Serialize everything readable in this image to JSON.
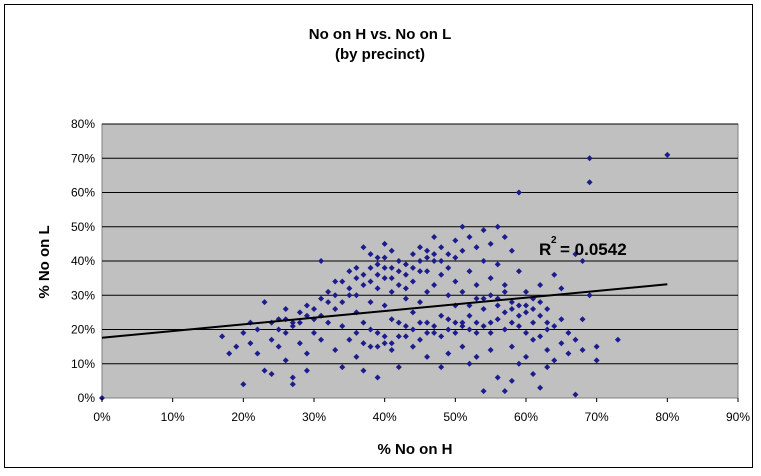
{
  "chart_data": {
    "type": "scatter",
    "title": "No on H vs. No on L",
    "subtitle": "(by precinct)",
    "xlabel": "% No on H",
    "ylabel": "% No on L",
    "xlim": [
      0,
      0.9
    ],
    "ylim": [
      0,
      0.8
    ],
    "x_ticks": [
      "0%",
      "10%",
      "20%",
      "30%",
      "40%",
      "50%",
      "60%",
      "70%",
      "80%",
      "90%"
    ],
    "y_ticks": [
      "0%",
      "10%",
      "20%",
      "30%",
      "40%",
      "50%",
      "60%",
      "70%",
      "80%"
    ],
    "grid": "horizontal",
    "colors": {
      "point": "#1c1c8c",
      "plot_bg": "#c0c0c0",
      "trendline": "#000000"
    },
    "annotation": {
      "text_r": "R",
      "sup": "2",
      "text_value": "= 0.0542"
    },
    "trendline": {
      "type": "linear",
      "x": [
        0,
        0.8
      ],
      "y": [
        0.176,
        0.332
      ]
    },
    "points": [
      [
        0,
        0
      ],
      [
        0.17,
        0.18
      ],
      [
        0.18,
        0.13
      ],
      [
        0.19,
        0.15
      ],
      [
        0.2,
        0.19
      ],
      [
        0.2,
        0.04
      ],
      [
        0.21,
        0.22
      ],
      [
        0.21,
        0.16
      ],
      [
        0.22,
        0.2
      ],
      [
        0.22,
        0.13
      ],
      [
        0.23,
        0.28
      ],
      [
        0.23,
        0.08
      ],
      [
        0.24,
        0.17
      ],
      [
        0.24,
        0.07
      ],
      [
        0.25,
        0.23
      ],
      [
        0.25,
        0.15
      ],
      [
        0.26,
        0.26
      ],
      [
        0.26,
        0.19
      ],
      [
        0.26,
        0.11
      ],
      [
        0.27,
        0.22
      ],
      [
        0.27,
        0.06
      ],
      [
        0.27,
        0.04
      ],
      [
        0.28,
        0.16
      ],
      [
        0.28,
        0.25
      ],
      [
        0.29,
        0.27
      ],
      [
        0.29,
        0.13
      ],
      [
        0.29,
        0.08
      ],
      [
        0.3,
        0.23
      ],
      [
        0.3,
        0.19
      ],
      [
        0.31,
        0.4
      ],
      [
        0.31,
        0.29
      ],
      [
        0.31,
        0.17
      ],
      [
        0.32,
        0.31
      ],
      [
        0.32,
        0.22
      ],
      [
        0.33,
        0.26
      ],
      [
        0.33,
        0.14
      ],
      [
        0.34,
        0.34
      ],
      [
        0.34,
        0.21
      ],
      [
        0.34,
        0.09
      ],
      [
        0.35,
        0.37
      ],
      [
        0.35,
        0.3
      ],
      [
        0.35,
        0.17
      ],
      [
        0.36,
        0.38
      ],
      [
        0.36,
        0.25
      ],
      [
        0.36,
        0.12
      ],
      [
        0.37,
        0.44
      ],
      [
        0.37,
        0.33
      ],
      [
        0.37,
        0.22
      ],
      [
        0.37,
        0.08
      ],
      [
        0.38,
        0.42
      ],
      [
        0.38,
        0.28
      ],
      [
        0.38,
        0.15
      ],
      [
        0.39,
        0.39
      ],
      [
        0.39,
        0.32
      ],
      [
        0.39,
        0.19
      ],
      [
        0.39,
        0.06
      ],
      [
        0.4,
        0.45
      ],
      [
        0.4,
        0.41
      ],
      [
        0.4,
        0.35
      ],
      [
        0.4,
        0.27
      ],
      [
        0.4,
        0.16
      ],
      [
        0.41,
        0.43
      ],
      [
        0.41,
        0.38
      ],
      [
        0.41,
        0.31
      ],
      [
        0.41,
        0.23
      ],
      [
        0.41,
        0.14
      ],
      [
        0.42,
        0.4
      ],
      [
        0.42,
        0.33
      ],
      [
        0.42,
        0.18
      ],
      [
        0.42,
        0.09
      ],
      [
        0.43,
        0.36
      ],
      [
        0.43,
        0.29
      ],
      [
        0.43,
        0.21
      ],
      [
        0.44,
        0.42
      ],
      [
        0.44,
        0.34
      ],
      [
        0.44,
        0.25
      ],
      [
        0.44,
        0.15
      ],
      [
        0.45,
        0.44
      ],
      [
        0.45,
        0.37
      ],
      [
        0.45,
        0.28
      ],
      [
        0.45,
        0.17
      ],
      [
        0.46,
        0.41
      ],
      [
        0.46,
        0.31
      ],
      [
        0.46,
        0.22
      ],
      [
        0.46,
        0.12
      ],
      [
        0.47,
        0.47
      ],
      [
        0.47,
        0.4
      ],
      [
        0.47,
        0.33
      ],
      [
        0.47,
        0.19
      ],
      [
        0.48,
        0.44
      ],
      [
        0.48,
        0.36
      ],
      [
        0.48,
        0.24
      ],
      [
        0.48,
        0.09
      ],
      [
        0.49,
        0.38
      ],
      [
        0.49,
        0.3
      ],
      [
        0.49,
        0.2
      ],
      [
        0.49,
        0.13
      ],
      [
        0.5,
        0.46
      ],
      [
        0.5,
        0.41
      ],
      [
        0.5,
        0.34
      ],
      [
        0.5,
        0.27
      ],
      [
        0.5,
        0.22
      ],
      [
        0.51,
        0.5
      ],
      [
        0.51,
        0.43
      ],
      [
        0.51,
        0.31
      ],
      [
        0.51,
        0.21
      ],
      [
        0.51,
        0.15
      ],
      [
        0.52,
        0.47
      ],
      [
        0.52,
        0.37
      ],
      [
        0.52,
        0.24
      ],
      [
        0.52,
        0.1
      ],
      [
        0.53,
        0.44
      ],
      [
        0.53,
        0.33
      ],
      [
        0.53,
        0.19
      ],
      [
        0.53,
        0.12
      ],
      [
        0.54,
        0.49
      ],
      [
        0.54,
        0.4
      ],
      [
        0.54,
        0.29
      ],
      [
        0.54,
        0.02
      ],
      [
        0.55,
        0.45
      ],
      [
        0.55,
        0.35
      ],
      [
        0.55,
        0.22
      ],
      [
        0.55,
        0.14
      ],
      [
        0.56,
        0.5
      ],
      [
        0.56,
        0.39
      ],
      [
        0.56,
        0.27
      ],
      [
        0.56,
        0.06
      ],
      [
        0.57,
        0.47
      ],
      [
        0.57,
        0.33
      ],
      [
        0.57,
        0.2
      ],
      [
        0.57,
        0.02
      ],
      [
        0.58,
        0.43
      ],
      [
        0.58,
        0.28
      ],
      [
        0.58,
        0.15
      ],
      [
        0.58,
        0.05
      ],
      [
        0.59,
        0.6
      ],
      [
        0.59,
        0.37
      ],
      [
        0.59,
        0.24
      ],
      [
        0.59,
        0.1
      ],
      [
        0.6,
        0.31
      ],
      [
        0.6,
        0.19
      ],
      [
        0.6,
        0.12
      ],
      [
        0.61,
        0.29
      ],
      [
        0.61,
        0.22
      ],
      [
        0.61,
        0.07
      ],
      [
        0.62,
        0.33
      ],
      [
        0.62,
        0.18
      ],
      [
        0.62,
        0.03
      ],
      [
        0.63,
        0.26
      ],
      [
        0.63,
        0.14
      ],
      [
        0.63,
        0.09
      ],
      [
        0.64,
        0.36
      ],
      [
        0.64,
        0.21
      ],
      [
        0.64,
        0.11
      ],
      [
        0.65,
        0.32
      ],
      [
        0.65,
        0.23
      ],
      [
        0.65,
        0.16
      ],
      [
        0.66,
        0.19
      ],
      [
        0.66,
        0.13
      ],
      [
        0.67,
        0.42
      ],
      [
        0.67,
        0.17
      ],
      [
        0.67,
        0.01
      ],
      [
        0.68,
        0.23
      ],
      [
        0.68,
        0.14
      ],
      [
        0.68,
        0.4
      ],
      [
        0.69,
        0.7
      ],
      [
        0.69,
        0.63
      ],
      [
        0.69,
        0.3
      ],
      [
        0.7,
        0.11
      ],
      [
        0.7,
        0.15
      ],
      [
        0.73,
        0.17
      ],
      [
        0.8,
        0.71
      ],
      [
        0.24,
        0.22
      ],
      [
        0.25,
        0.2
      ],
      [
        0.26,
        0.23
      ],
      [
        0.27,
        0.21
      ],
      [
        0.28,
        0.22
      ],
      [
        0.29,
        0.24
      ],
      [
        0.3,
        0.26
      ],
      [
        0.31,
        0.24
      ],
      [
        0.32,
        0.28
      ],
      [
        0.33,
        0.3
      ],
      [
        0.33,
        0.34
      ],
      [
        0.34,
        0.28
      ],
      [
        0.35,
        0.32
      ],
      [
        0.36,
        0.35
      ],
      [
        0.36,
        0.3
      ],
      [
        0.37,
        0.36
      ],
      [
        0.38,
        0.34
      ],
      [
        0.38,
        0.38
      ],
      [
        0.39,
        0.36
      ],
      [
        0.39,
        0.41
      ],
      [
        0.4,
        0.38
      ],
      [
        0.41,
        0.35
      ],
      [
        0.42,
        0.37
      ],
      [
        0.43,
        0.39
      ],
      [
        0.43,
        0.32
      ],
      [
        0.44,
        0.38
      ],
      [
        0.45,
        0.4
      ],
      [
        0.46,
        0.37
      ],
      [
        0.46,
        0.43
      ],
      [
        0.47,
        0.42
      ],
      [
        0.48,
        0.4
      ],
      [
        0.49,
        0.42
      ],
      [
        0.36,
        0.19
      ],
      [
        0.37,
        0.16
      ],
      [
        0.38,
        0.2
      ],
      [
        0.39,
        0.15
      ],
      [
        0.4,
        0.18
      ],
      [
        0.41,
        0.16
      ],
      [
        0.42,
        0.22
      ],
      [
        0.43,
        0.18
      ],
      [
        0.44,
        0.2
      ],
      [
        0.45,
        0.22
      ],
      [
        0.46,
        0.19
      ],
      [
        0.47,
        0.21
      ],
      [
        0.48,
        0.18
      ],
      [
        0.49,
        0.23
      ],
      [
        0.5,
        0.19
      ],
      [
        0.51,
        0.22
      ],
      [
        0.52,
        0.2
      ],
      [
        0.53,
        0.22
      ],
      [
        0.54,
        0.21
      ],
      [
        0.55,
        0.19
      ],
      [
        0.56,
        0.23
      ],
      [
        0.57,
        0.25
      ],
      [
        0.58,
        0.22
      ],
      [
        0.59,
        0.27
      ],
      [
        0.6,
        0.25
      ],
      [
        0.61,
        0.26
      ],
      [
        0.62,
        0.24
      ],
      [
        0.63,
        0.22
      ],
      [
        0.52,
        0.27
      ],
      [
        0.53,
        0.29
      ],
      [
        0.54,
        0.26
      ],
      [
        0.55,
        0.3
      ],
      [
        0.56,
        0.29
      ],
      [
        0.57,
        0.31
      ],
      [
        0.58,
        0.26
      ],
      [
        0.59,
        0.21
      ],
      [
        0.6,
        0.27
      ],
      [
        0.61,
        0.17
      ],
      [
        0.62,
        0.28
      ],
      [
        0.63,
        0.2
      ]
    ]
  }
}
